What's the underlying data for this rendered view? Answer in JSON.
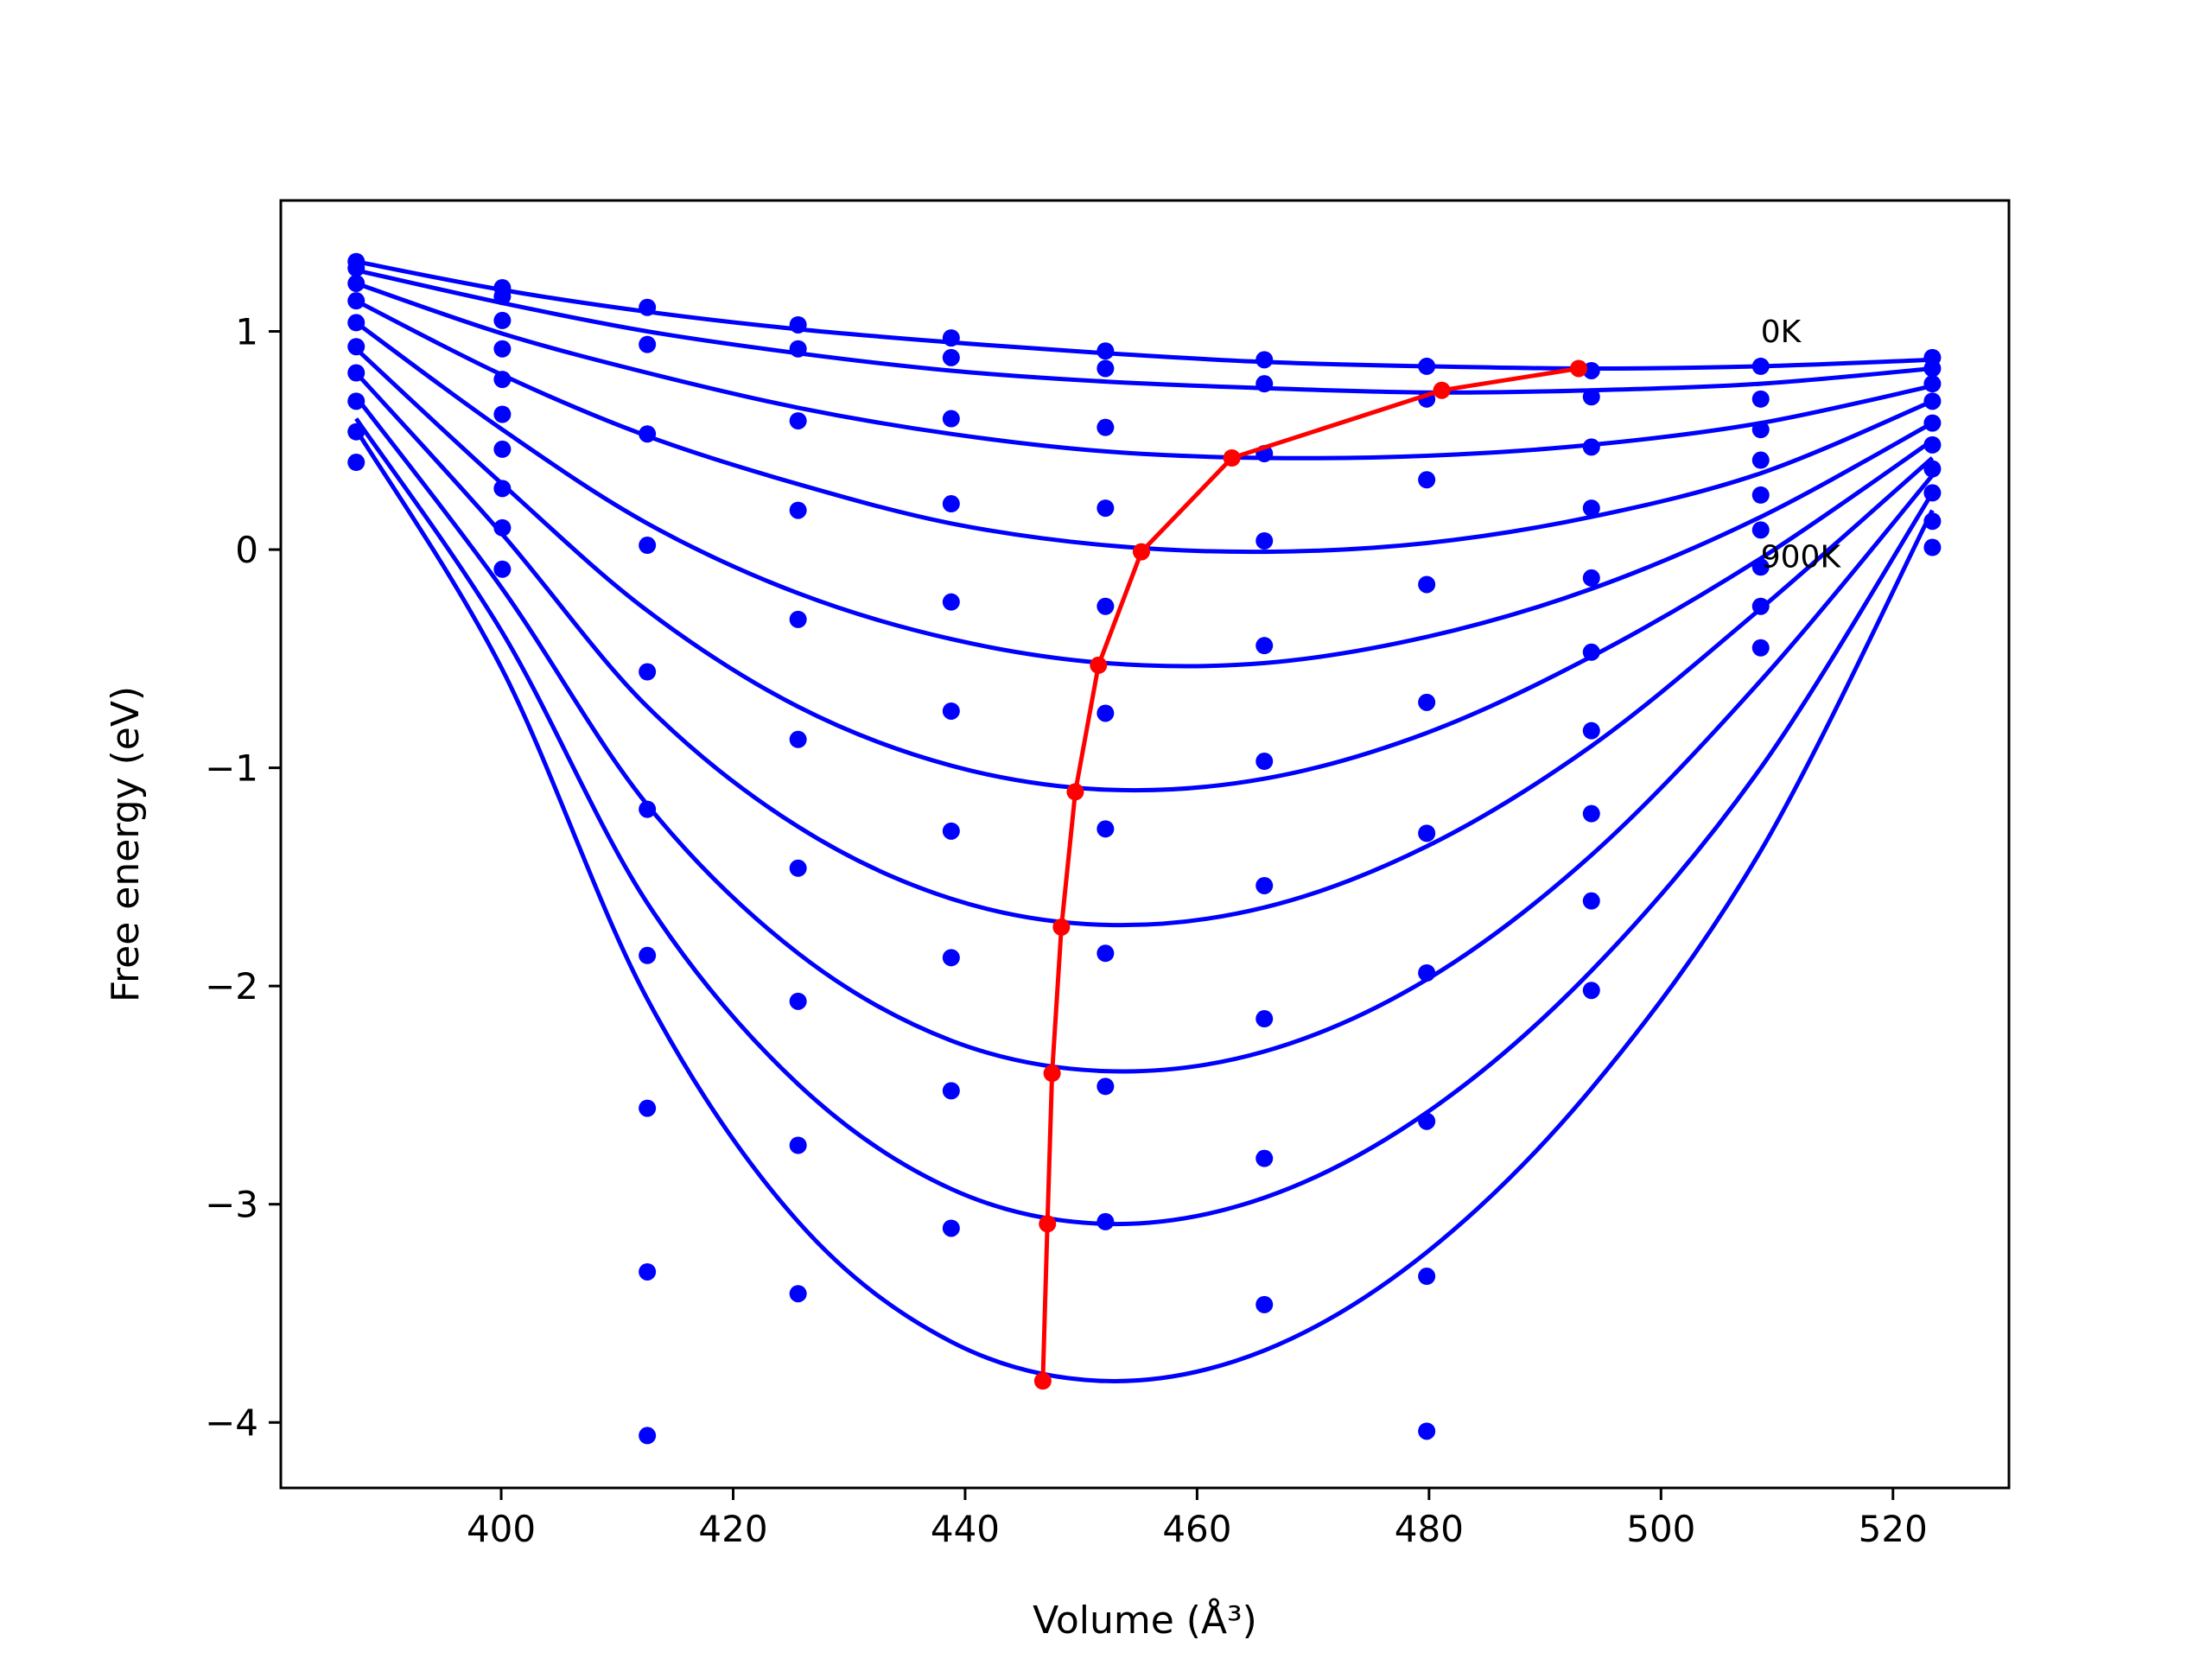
{
  "chart_data": {
    "type": "line",
    "title": "",
    "xlabel": "Volume (Å³)",
    "ylabel": "Free energy (eV)",
    "xlim": [
      381,
      530
    ],
    "ylim": [
      -4.3,
      1.6
    ],
    "x_ticks": [
      400,
      420,
      440,
      460,
      480,
      500,
      520
    ],
    "x_tick_labels": [
      "400",
      "420",
      "440",
      "460",
      "480",
      "500",
      "520"
    ],
    "y_ticks": [
      1,
      0,
      -1,
      -2,
      -3,
      -4
    ],
    "y_tick_labels": [
      "1",
      "0",
      "−1",
      "−2",
      "−3",
      "−4"
    ],
    "grid": false,
    "annotations": [
      {
        "text": "0K",
        "x": 508.6,
        "y": 0.95
      },
      {
        "text": "900K",
        "x": 508.6,
        "y": -0.08
      }
    ],
    "volumes": [
      387.5,
      400.1,
      412.6,
      425.6,
      438.8,
      452.1,
      465.8,
      479.8,
      494.0,
      508.6,
      523.4
    ],
    "series": [
      {
        "values": [
          1.32,
          1.2,
          1.11,
          1.03,
          0.97,
          0.91,
          0.87,
          0.84,
          0.82,
          0.84,
          0.88
        ],
        "fit": [
          1.32,
          1.19,
          1.09,
          1.01,
          0.95,
          0.9,
          0.86,
          0.84,
          0.83,
          0.84,
          0.87
        ]
      },
      {
        "values": [
          1.29,
          1.16,
          0.94,
          0.92,
          0.88,
          0.83,
          0.76,
          0.69,
          0.7,
          0.69,
          0.83
        ],
        "fit": [
          1.28,
          1.13,
          1.0,
          0.9,
          0.82,
          0.77,
          0.74,
          0.72,
          0.73,
          0.76,
          0.83
        ]
      },
      {
        "values": [
          1.22,
          1.05,
          0.53,
          0.59,
          0.6,
          0.56,
          0.44,
          0.32,
          0.47,
          0.55,
          0.76
        ],
        "fit": [
          1.22,
          0.99,
          0.81,
          0.65,
          0.53,
          0.45,
          0.42,
          0.43,
          0.48,
          0.58,
          0.75
        ]
      },
      {
        "values": [
          1.14,
          0.92,
          0.02,
          0.18,
          0.21,
          0.19,
          0.04,
          -0.16,
          0.19,
          0.41,
          0.68
        ],
        "fit": [
          1.14,
          0.8,
          0.52,
          0.3,
          0.12,
          0.02,
          -0.01,
          0.03,
          0.15,
          0.35,
          0.68
        ]
      },
      {
        "values": [
          1.04,
          0.78,
          -0.56,
          -0.32,
          -0.24,
          -0.26,
          -0.44,
          -0.7,
          -0.13,
          0.25,
          0.58
        ],
        "fit": [
          1.04,
          0.55,
          0.12,
          -0.2,
          -0.41,
          -0.52,
          -0.52,
          -0.4,
          -0.18,
          0.15,
          0.58
        ]
      },
      {
        "values": [
          0.93,
          0.62,
          -1.19,
          -0.87,
          -0.74,
          -0.75,
          -0.97,
          -1.3,
          -0.47,
          0.09,
          0.48
        ],
        "fit": [
          0.92,
          0.3,
          -0.28,
          -0.72,
          -0.99,
          -1.1,
          -1.05,
          -0.84,
          -0.49,
          -0.04,
          0.5
        ]
      },
      {
        "values": [
          0.81,
          0.46,
          -1.86,
          -1.46,
          -1.29,
          -1.28,
          -1.54,
          -1.94,
          -0.83,
          -0.08,
          0.37
        ],
        "fit": [
          0.81,
          0.07,
          -0.72,
          -1.27,
          -1.6,
          -1.72,
          -1.64,
          -1.36,
          -0.9,
          -0.27,
          0.42
        ]
      },
      {
        "values": [
          0.68,
          0.28,
          -2.56,
          -2.07,
          -1.87,
          -1.85,
          -2.15,
          -2.62,
          -1.21,
          -0.26,
          0.26
        ],
        "fit": [
          0.7,
          -0.18,
          -1.17,
          -1.85,
          -2.25,
          -2.39,
          -2.3,
          -1.97,
          -1.4,
          -0.6,
          0.34
        ]
      },
      {
        "values": [
          0.54,
          0.1,
          -3.31,
          -2.73,
          -2.48,
          -2.46,
          -2.79,
          -3.33,
          -1.61,
          -0.45,
          0.13
        ],
        "fit": [
          0.6,
          -0.38,
          -1.62,
          -2.45,
          -2.93,
          -3.09,
          -2.97,
          -2.58,
          -1.93,
          -1.0,
          0.26
        ]
      },
      {
        "values": [
          0.4,
          -0.09,
          -4.06,
          -3.41,
          -3.11,
          -3.08,
          -3.46,
          -4.04,
          -2.02,
          null,
          0.01
        ],
        "fit": [
          0.55,
          -0.55,
          -2.06,
          -3.08,
          -3.63,
          -3.81,
          -3.67,
          -3.22,
          -2.47,
          -1.38,
          0.18
        ]
      }
    ],
    "minima": {
      "x": [
        492.9,
        481.1,
        463.0,
        455.2,
        451.5,
        449.5,
        448.3,
        447.5,
        447.1,
        446.7
      ],
      "y": [
        0.83,
        0.73,
        0.42,
        -0.01,
        -0.53,
        -1.11,
        -1.73,
        -2.4,
        -3.09,
        -3.81
      ]
    },
    "colors": {
      "curves": "#0000ff",
      "minima": "#ff0000",
      "axes": "#000000"
    }
  }
}
